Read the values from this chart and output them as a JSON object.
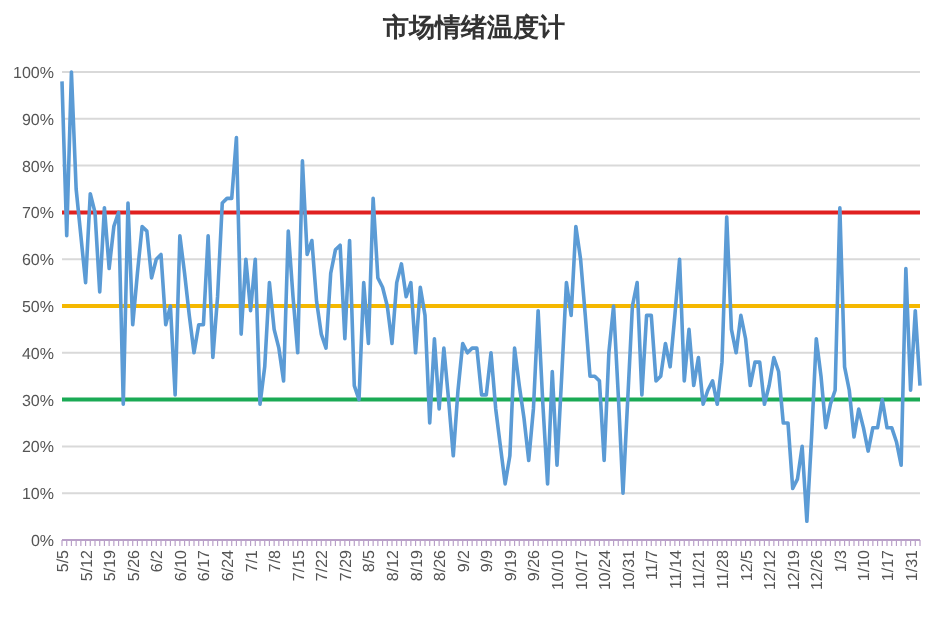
{
  "chart_data": {
    "type": "line",
    "title": "市场情绪温度计",
    "categories": [
      "5/5",
      null,
      null,
      null,
      null,
      "5/12",
      null,
      null,
      null,
      null,
      "5/19",
      null,
      null,
      null,
      null,
      "5/26",
      null,
      null,
      null,
      null,
      "6/2",
      null,
      null,
      null,
      null,
      "6/10",
      null,
      null,
      null,
      null,
      "6/17",
      null,
      null,
      null,
      null,
      "6/24",
      null,
      null,
      null,
      null,
      "7/1",
      null,
      null,
      null,
      null,
      "7/8",
      null,
      null,
      null,
      null,
      "7/15",
      null,
      null,
      null,
      null,
      "7/22",
      null,
      null,
      null,
      null,
      "7/29",
      null,
      null,
      null,
      null,
      "8/5",
      null,
      null,
      null,
      null,
      "8/12",
      null,
      null,
      null,
      null,
      "8/19",
      null,
      null,
      null,
      null,
      "8/26",
      null,
      null,
      null,
      null,
      "9/2",
      null,
      null,
      null,
      null,
      "9/9",
      null,
      null,
      null,
      null,
      "9/19",
      null,
      null,
      null,
      null,
      "9/26",
      null,
      null,
      null,
      null,
      "10/10",
      null,
      null,
      null,
      null,
      "10/17",
      null,
      null,
      null,
      null,
      "10/24",
      null,
      null,
      null,
      null,
      "10/31",
      null,
      null,
      null,
      null,
      "11/7",
      null,
      null,
      null,
      null,
      "11/14",
      null,
      null,
      null,
      null,
      "11/21",
      null,
      null,
      null,
      null,
      "11/28",
      null,
      null,
      null,
      null,
      "12/5",
      null,
      null,
      null,
      null,
      "12/12",
      null,
      null,
      null,
      null,
      "12/19",
      null,
      null,
      null,
      null,
      "12/26",
      null,
      null,
      null,
      null,
      "1/3",
      null,
      null,
      null,
      null,
      "1/10",
      null,
      null,
      null,
      null,
      "1/17",
      null,
      null,
      null,
      null,
      "1/31",
      null,
      null
    ],
    "series": [
      {
        "color": "#5b9bd5",
        "values": [
          98,
          65,
          100,
          75,
          65,
          55,
          74,
          70,
          53,
          71,
          58,
          67,
          70,
          29,
          72,
          46,
          57,
          67,
          66,
          56,
          60,
          61,
          46,
          50,
          31,
          65,
          57,
          48,
          40,
          46,
          46,
          65,
          39,
          52,
          72,
          73,
          73,
          86,
          44,
          60,
          49,
          60,
          29,
          37,
          55,
          45,
          41,
          34,
          66,
          52,
          40,
          81,
          61,
          64,
          51,
          44,
          41,
          57,
          62,
          63,
          43,
          64,
          33,
          30,
          55,
          42,
          73,
          56,
          54,
          50,
          42,
          55,
          59,
          52,
          55,
          40,
          54,
          48,
          25,
          43,
          28,
          41,
          30,
          18,
          32,
          42,
          40,
          41,
          41,
          31,
          31,
          40,
          28,
          20,
          12,
          18,
          41,
          33,
          26,
          17,
          28,
          49,
          29,
          12,
          36,
          16,
          35,
          55,
          48,
          67,
          60,
          48,
          35,
          35,
          34,
          17,
          40,
          50,
          31,
          10,
          30,
          50,
          55,
          31,
          48,
          48,
          34,
          35,
          42,
          37,
          48,
          60,
          34,
          45,
          33,
          39,
          29,
          32,
          34,
          29,
          38,
          69,
          45,
          40,
          48,
          43,
          33,
          38,
          38,
          29,
          33,
          39,
          36,
          25,
          25,
          11,
          13,
          20,
          4,
          22,
          43,
          35,
          24,
          29,
          32,
          71,
          37,
          32,
          22,
          28,
          24,
          19,
          24,
          24,
          30,
          24,
          24,
          21,
          16,
          58,
          32,
          49,
          33
        ]
      }
    ],
    "ylim": [
      0,
      100
    ],
    "yticks": [
      {
        "value": 0,
        "label": "0%"
      },
      {
        "value": 10,
        "label": "10%"
      },
      {
        "value": 20,
        "label": "20%"
      },
      {
        "value": 30,
        "label": "30%"
      },
      {
        "value": 40,
        "label": "40%"
      },
      {
        "value": 50,
        "label": "50%"
      },
      {
        "value": 60,
        "label": "60%"
      },
      {
        "value": 70,
        "label": "70%"
      },
      {
        "value": 80,
        "label": "80%"
      },
      {
        "value": 90,
        "label": "90%"
      },
      {
        "value": 100,
        "label": "100%"
      }
    ],
    "grid": "y",
    "ref_lines": [
      {
        "axis": "y",
        "value": 70,
        "color": "#e02020"
      },
      {
        "axis": "y",
        "value": 50,
        "color": "#f5b800"
      },
      {
        "axis": "y",
        "value": 30,
        "color": "#1aaa55"
      }
    ]
  }
}
